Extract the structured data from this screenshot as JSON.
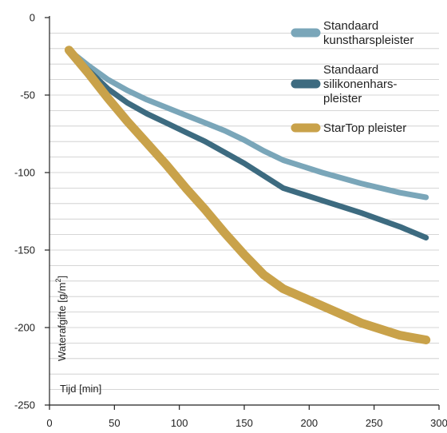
{
  "chart_data": {
    "type": "line",
    "xlabel": "Tijd [min]",
    "ylabel": "Waterafgifte [g/m",
    "ylabel_sup": "2",
    "ylabel_end": "]",
    "xlim": [
      0,
      300
    ],
    "ylim": [
      -250,
      0
    ],
    "xticks": [
      0,
      50,
      100,
      150,
      200,
      250,
      300
    ],
    "yticks": [
      0,
      -50,
      -100,
      -150,
      -200,
      -250
    ],
    "grid": "horizontal",
    "legend_position": "top-right",
    "series": [
      {
        "name": "Standaard kunstharspleister",
        "name_lines": [
          "Standaard",
          "kunstharspleister"
        ],
        "color": "#7aa6b9",
        "x": [
          15,
          30,
          45,
          60,
          75,
          90,
          105,
          120,
          135,
          150,
          165,
          180,
          210,
          240,
          270,
          290
        ],
        "y": [
          -21,
          -31,
          -40,
          -47,
          -53,
          -58,
          -63,
          -68,
          -73,
          -79,
          -86,
          -92,
          -100,
          -107,
          -113,
          -116
        ]
      },
      {
        "name": "Standaard silikonenharspleister",
        "name_lines": [
          "Standaard",
          "silikonenhars-",
          "pleister"
        ],
        "color": "#3d6b80",
        "x": [
          15,
          30,
          45,
          60,
          75,
          90,
          105,
          120,
          135,
          150,
          165,
          180,
          210,
          240,
          270,
          290
        ],
        "y": [
          -21,
          -34,
          -46,
          -55,
          -62,
          -68,
          -74,
          -80,
          -87,
          -94,
          -102,
          -110,
          -118,
          -126,
          -135,
          -142
        ]
      },
      {
        "name": "StarTop pleister",
        "name_lines": [
          "StarTop pleister"
        ],
        "color": "#c9a24a",
        "x": [
          15,
          30,
          45,
          60,
          75,
          90,
          105,
          120,
          135,
          150,
          165,
          180,
          210,
          240,
          270,
          290
        ],
        "y": [
          -21,
          -36,
          -52,
          -67,
          -81,
          -95,
          -110,
          -124,
          -139,
          -153,
          -166,
          -175,
          -186,
          -197,
          -205,
          -208
        ]
      }
    ]
  }
}
